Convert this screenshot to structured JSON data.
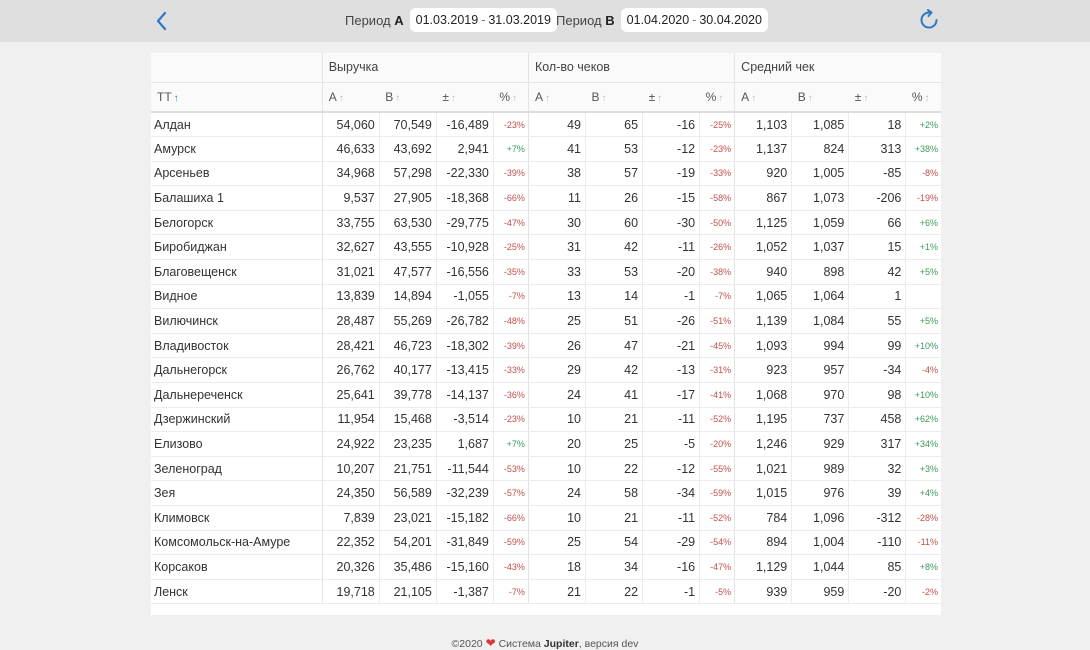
{
  "header": {
    "period_a_label": "Период",
    "period_a_letter": "A",
    "period_a_from": "01.03.2019",
    "period_a_to": "31.03.2019",
    "period_b_label": "Период",
    "period_b_letter": "B",
    "period_b_from": "01.04.2020",
    "period_b_to": "30.04.2020",
    "date_separator": "-"
  },
  "table": {
    "groups": [
      "Выручка",
      "Кол-во чеков",
      "Средний чек"
    ],
    "name_header": "ТТ",
    "sub_headers": [
      "A",
      "B",
      "±",
      "%"
    ],
    "rows": [
      {
        "name": "Алдан",
        "v": [
          "54,060",
          "70,549",
          "-16,489",
          "-23%",
          "49",
          "65",
          "-16",
          "-25%",
          "1,103",
          "1,085",
          "18",
          "+2%"
        ]
      },
      {
        "name": "Амурск",
        "v": [
          "46,633",
          "43,692",
          "2,941",
          "+7%",
          "41",
          "53",
          "-12",
          "-23%",
          "1,137",
          "824",
          "313",
          "+38%"
        ]
      },
      {
        "name": "Арсеньев",
        "v": [
          "34,968",
          "57,298",
          "-22,330",
          "-39%",
          "38",
          "57",
          "-19",
          "-33%",
          "920",
          "1,005",
          "-85",
          "-8%"
        ]
      },
      {
        "name": "Балашиха 1",
        "v": [
          "9,537",
          "27,905",
          "-18,368",
          "-66%",
          "11",
          "26",
          "-15",
          "-58%",
          "867",
          "1,073",
          "-206",
          "-19%"
        ]
      },
      {
        "name": "Белогорск",
        "v": [
          "33,755",
          "63,530",
          "-29,775",
          "-47%",
          "30",
          "60",
          "-30",
          "-50%",
          "1,125",
          "1,059",
          "66",
          "+6%"
        ]
      },
      {
        "name": "Биробиджан",
        "v": [
          "32,627",
          "43,555",
          "-10,928",
          "-25%",
          "31",
          "42",
          "-11",
          "-26%",
          "1,052",
          "1,037",
          "15",
          "+1%"
        ]
      },
      {
        "name": "Благовещенск",
        "v": [
          "31,021",
          "47,577",
          "-16,556",
          "-35%",
          "33",
          "53",
          "-20",
          "-38%",
          "940",
          "898",
          "42",
          "+5%"
        ]
      },
      {
        "name": "Видное",
        "v": [
          "13,839",
          "14,894",
          "-1,055",
          "-7%",
          "13",
          "14",
          "-1",
          "-7%",
          "1,065",
          "1,064",
          "1",
          ""
        ]
      },
      {
        "name": "Вилючинск",
        "v": [
          "28,487",
          "55,269",
          "-26,782",
          "-48%",
          "25",
          "51",
          "-26",
          "-51%",
          "1,139",
          "1,084",
          "55",
          "+5%"
        ]
      },
      {
        "name": "Владивосток",
        "v": [
          "28,421",
          "46,723",
          "-18,302",
          "-39%",
          "26",
          "47",
          "-21",
          "-45%",
          "1,093",
          "994",
          "99",
          "+10%"
        ]
      },
      {
        "name": "Дальнегорск",
        "v": [
          "26,762",
          "40,177",
          "-13,415",
          "-33%",
          "29",
          "42",
          "-13",
          "-31%",
          "923",
          "957",
          "-34",
          "-4%"
        ]
      },
      {
        "name": "Дальнереченск",
        "v": [
          "25,641",
          "39,778",
          "-14,137",
          "-36%",
          "24",
          "41",
          "-17",
          "-41%",
          "1,068",
          "970",
          "98",
          "+10%"
        ]
      },
      {
        "name": "Дзержинский",
        "v": [
          "11,954",
          "15,468",
          "-3,514",
          "-23%",
          "10",
          "21",
          "-11",
          "-52%",
          "1,195",
          "737",
          "458",
          "+62%"
        ]
      },
      {
        "name": "Елизово",
        "v": [
          "24,922",
          "23,235",
          "1,687",
          "+7%",
          "20",
          "25",
          "-5",
          "-20%",
          "1,246",
          "929",
          "317",
          "+34%"
        ]
      },
      {
        "name": "Зеленоград",
        "v": [
          "10,207",
          "21,751",
          "-11,544",
          "-53%",
          "10",
          "22",
          "-12",
          "-55%",
          "1,021",
          "989",
          "32",
          "+3%"
        ]
      },
      {
        "name": "Зея",
        "v": [
          "24,350",
          "56,589",
          "-32,239",
          "-57%",
          "24",
          "58",
          "-34",
          "-59%",
          "1,015",
          "976",
          "39",
          "+4%"
        ]
      },
      {
        "name": "Климовск",
        "v": [
          "7,839",
          "23,021",
          "-15,182",
          "-66%",
          "10",
          "21",
          "-11",
          "-52%",
          "784",
          "1,096",
          "-312",
          "-28%"
        ]
      },
      {
        "name": "Комсомольск-на-Амуре",
        "v": [
          "22,352",
          "54,201",
          "-31,849",
          "-59%",
          "25",
          "54",
          "-29",
          "-54%",
          "894",
          "1,004",
          "-110",
          "-11%"
        ]
      },
      {
        "name": "Корсаков",
        "v": [
          "20,326",
          "35,486",
          "-15,160",
          "-43%",
          "18",
          "34",
          "-16",
          "-47%",
          "1,129",
          "1,044",
          "85",
          "+8%"
        ]
      },
      {
        "name": "Ленск",
        "v": [
          "19,718",
          "21,105",
          "-1,387",
          "-7%",
          "21",
          "22",
          "-1",
          "-5%",
          "939",
          "959",
          "-20",
          "-2%"
        ]
      }
    ]
  },
  "footer": {
    "copyright": "©2020",
    "system_label": "Система",
    "system_name": "Jupiter",
    "version_label": ", версия",
    "version": "dev"
  },
  "colors": {
    "negative": "#c0504d",
    "positive": "#3a9a5b",
    "accent": "#2f77c5",
    "heart": "#d83a3a"
  },
  "icons": {
    "back": "chevron-left-icon",
    "refresh": "refresh-icon",
    "sort": "sort-arrow-icon",
    "heart": "heart-icon"
  }
}
